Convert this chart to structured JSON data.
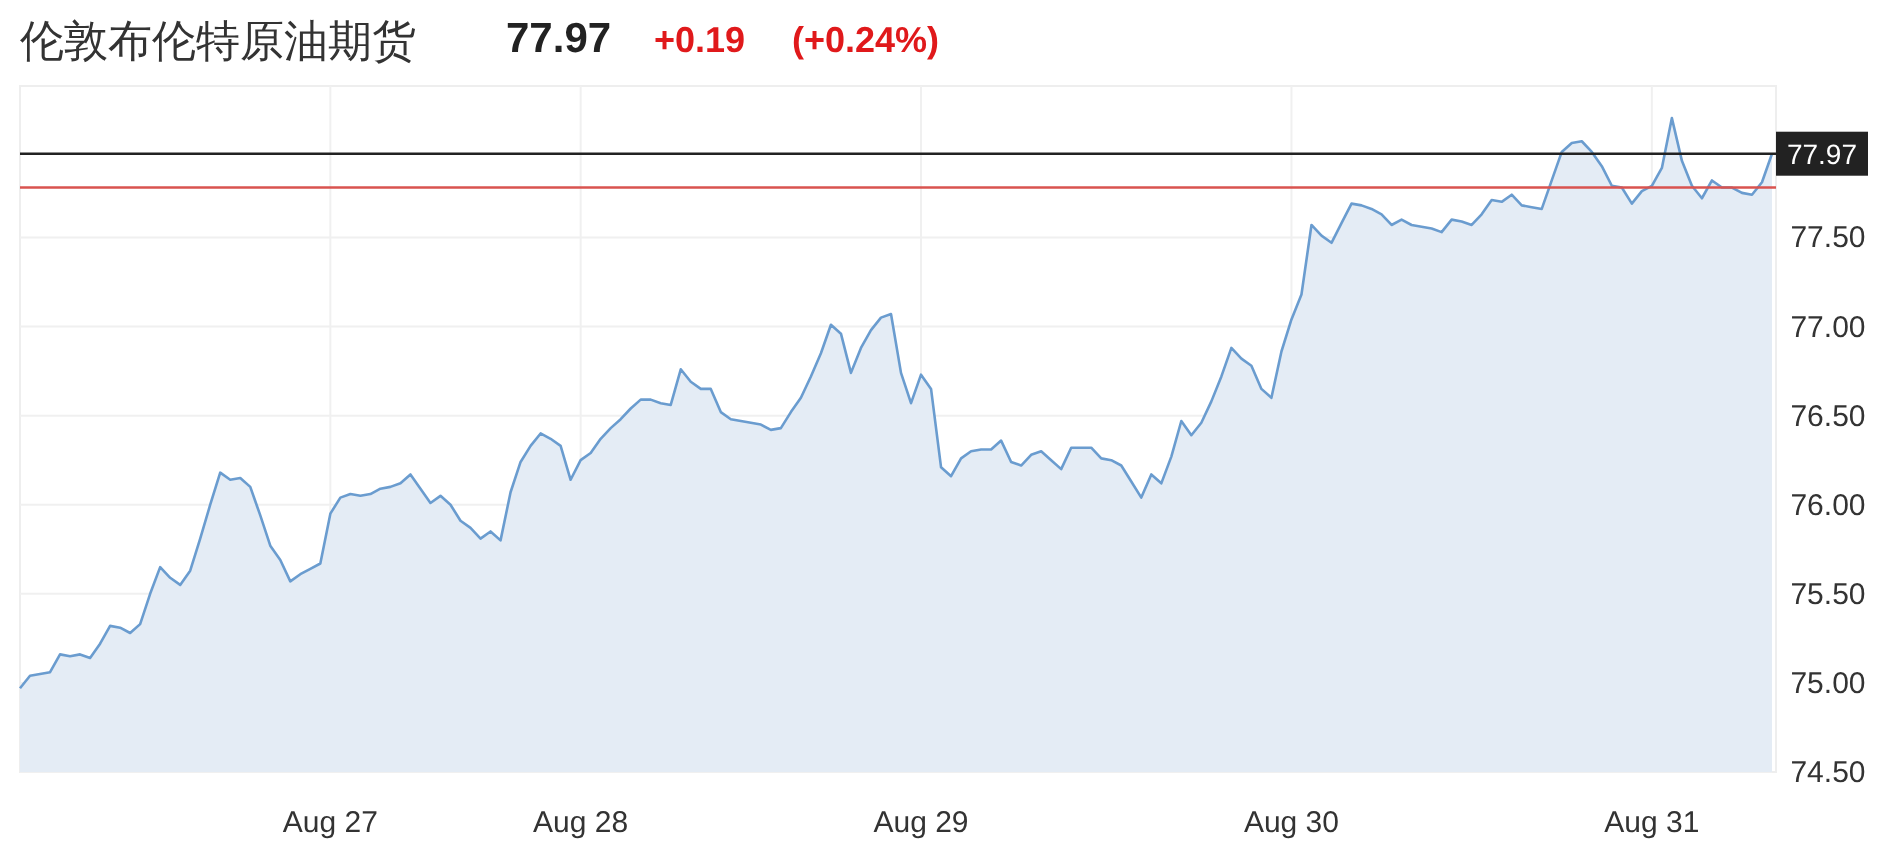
{
  "chart_data": {
    "type": "area",
    "title": "伦敦布伦特原油期货",
    "annotations": [
      "77.97",
      "+0.19",
      "(+0.24%)"
    ],
    "categories": [
      null,
      null,
      null,
      null,
      null,
      null,
      null,
      null,
      null,
      null,
      null,
      null,
      null,
      null,
      null,
      null,
      null,
      null,
      null,
      null,
      null,
      null,
      null,
      null,
      null,
      null,
      null,
      null,
      null,
      null,
      null,
      "Aug 27",
      null,
      null,
      null,
      null,
      null,
      null,
      null,
      null,
      null,
      null,
      null,
      null,
      null,
      null,
      null,
      null,
      null,
      null,
      null,
      null,
      null,
      null,
      null,
      null,
      "Aug 28",
      null,
      null,
      null,
      null,
      null,
      null,
      null,
      null,
      null,
      null,
      null,
      null,
      null,
      null,
      null,
      null,
      null,
      null,
      null,
      null,
      null,
      null,
      null,
      null,
      null,
      null,
      null,
      null,
      null,
      null,
      null,
      null,
      null,
      "Aug 29",
      null,
      null,
      null,
      null,
      null,
      null,
      null,
      null,
      null,
      null,
      null,
      null,
      null,
      null,
      null,
      null,
      null,
      null,
      null,
      null,
      null,
      null,
      null,
      null,
      null,
      null,
      null,
      null,
      null,
      null,
      null,
      null,
      null,
      null,
      null,
      null,
      "Aug 30",
      null,
      null,
      null,
      null,
      null,
      null,
      null,
      null,
      null,
      null,
      null,
      null,
      null,
      null,
      null,
      null,
      null,
      null,
      null,
      null,
      null,
      null,
      null,
      null,
      null,
      null,
      null,
      null,
      null,
      null,
      null,
      null,
      null,
      null,
      null,
      "Aug 31",
      null,
      null,
      null,
      null,
      null,
      null,
      null,
      null,
      null,
      null,
      null,
      null
    ],
    "series": [
      {
        "color": "#6a9ccf",
        "values": [
          74.97,
          75.04,
          75.05,
          75.06,
          75.16,
          75.15,
          75.16,
          75.14,
          75.22,
          75.32,
          75.31,
          75.28,
          75.33,
          75.5,
          75.65,
          75.59,
          75.55,
          75.63,
          75.81,
          76.0,
          76.18,
          76.14,
          76.15,
          76.1,
          75.94,
          75.77,
          75.69,
          75.57,
          75.61,
          75.64,
          75.67,
          75.95,
          76.04,
          76.06,
          76.05,
          76.06,
          76.09,
          76.1,
          76.12,
          76.17,
          76.09,
          76.01,
          76.05,
          76.0,
          75.91,
          75.87,
          75.81,
          75.85,
          75.8,
          76.07,
          76.24,
          76.33,
          76.4,
          76.37,
          76.33,
          76.14,
          76.25,
          76.29,
          76.37,
          76.43,
          76.48,
          76.54,
          76.59,
          76.59,
          76.57,
          76.56,
          76.76,
          76.69,
          76.65,
          76.65,
          76.52,
          76.48,
          76.47,
          76.46,
          76.45,
          76.42,
          76.43,
          76.52,
          76.6,
          76.72,
          76.85,
          77.01,
          76.96,
          76.74,
          76.88,
          76.98,
          77.05,
          77.07,
          76.74,
          76.57,
          76.73,
          76.65,
          76.21,
          76.16,
          76.26,
          76.3,
          76.31,
          76.31,
          76.36,
          76.24,
          76.22,
          76.28,
          76.3,
          76.25,
          76.2,
          76.32,
          76.32,
          76.32,
          76.26,
          76.25,
          76.22,
          76.13,
          76.04,
          76.17,
          76.12,
          76.27,
          76.47,
          76.39,
          76.46,
          76.58,
          76.72,
          76.88,
          76.82,
          76.78,
          76.65,
          76.6,
          76.86,
          77.04,
          77.18,
          77.57,
          77.51,
          77.47,
          77.58,
          77.69,
          77.68,
          77.66,
          77.63,
          77.57,
          77.6,
          77.57,
          77.56,
          77.55,
          77.53,
          77.6,
          77.59,
          77.57,
          77.63,
          77.71,
          77.7,
          77.74,
          77.68,
          77.67,
          77.66,
          77.82,
          77.98,
          78.03,
          78.04,
          77.98,
          77.9,
          77.79,
          77.78,
          77.69,
          77.76,
          77.79,
          77.89,
          78.17,
          77.93,
          77.79,
          77.72,
          77.82,
          77.78,
          77.78,
          77.75,
          77.74,
          77.81,
          77.97
        ]
      }
    ],
    "ylim": [
      74.5,
      78.35
    ],
    "yticks": [
      {
        "value": 74.5,
        "label": "74.50"
      },
      {
        "value": 75,
        "label": "75.00"
      },
      {
        "value": 75.5,
        "label": "75.50"
      },
      {
        "value": 76,
        "label": "76.00"
      },
      {
        "value": 76.5,
        "label": "76.50"
      },
      {
        "value": 77,
        "label": "77.00"
      },
      {
        "value": 77.5,
        "label": "77.50"
      }
    ],
    "ref_lines": [
      {
        "axis": "y",
        "value": 77.97,
        "label": "77.97",
        "color": "#222222"
      },
      {
        "axis": "y",
        "value": 77.78,
        "color": "#d9534f"
      }
    ],
    "grid": true,
    "marker": "none",
    "line_style": "solid"
  }
}
